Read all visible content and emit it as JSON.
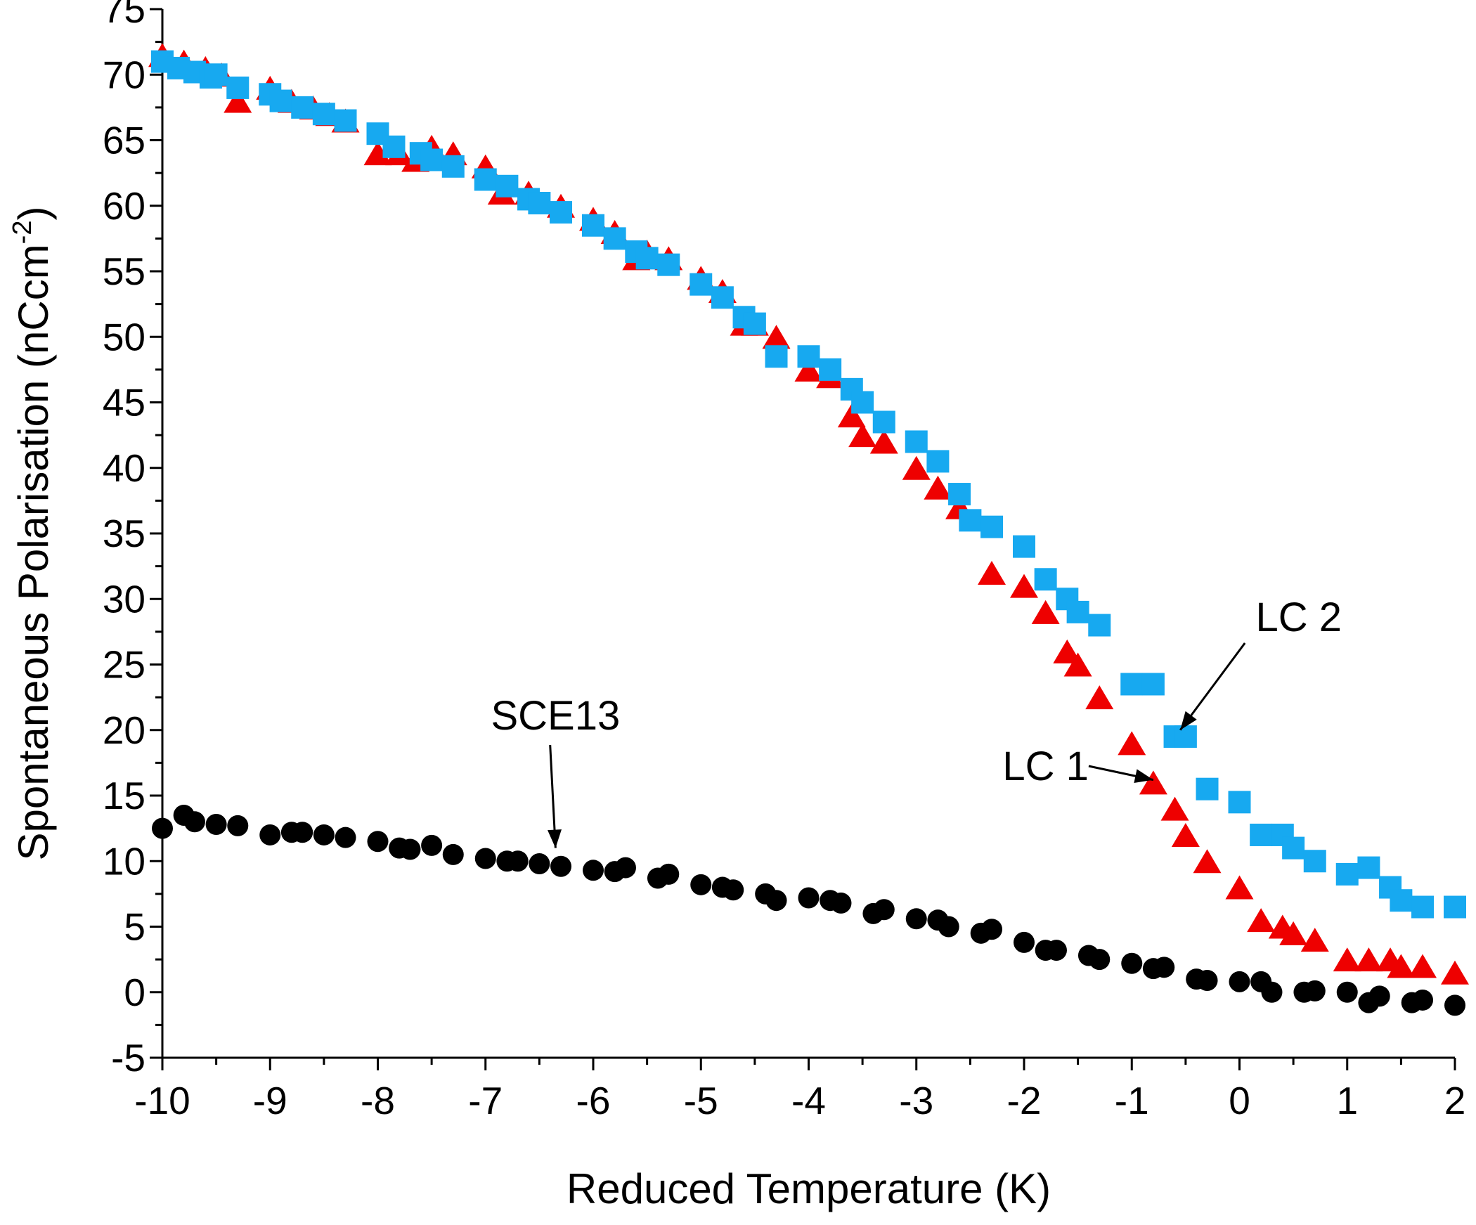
{
  "chart_data": {
    "type": "scatter",
    "title": "",
    "xlabel": "Reduced Temperature (K)",
    "ylabel_main": "Spontaneous Polarisation (nCcm",
    "ylabel_sup": "-2",
    "ylabel_end": ")",
    "xlim": [
      -10,
      2
    ],
    "ylim": [
      -5,
      75
    ],
    "xticks": [
      -10,
      -9,
      -8,
      -7,
      -6,
      -5,
      -4,
      -3,
      -2,
      -1,
      0,
      1,
      2
    ],
    "yticks": [
      -5,
      0,
      5,
      10,
      15,
      20,
      25,
      30,
      35,
      40,
      45,
      50,
      55,
      60,
      65,
      70,
      75
    ],
    "grid": false,
    "series": [
      {
        "name": "LC 1",
        "marker": "triangle",
        "color": "#ee0000",
        "points": [
          [
            -10.0,
            71.5
          ],
          [
            -9.8,
            71.0
          ],
          [
            -9.6,
            70.5
          ],
          [
            -9.45,
            70.0
          ],
          [
            -9.3,
            68.0
          ],
          [
            -9.0,
            69.0
          ],
          [
            -8.8,
            68.0
          ],
          [
            -8.6,
            67.5
          ],
          [
            -8.45,
            67.0
          ],
          [
            -8.3,
            66.5
          ],
          [
            -8.0,
            64.0
          ],
          [
            -7.8,
            64.0
          ],
          [
            -7.65,
            63.5
          ],
          [
            -7.5,
            64.5
          ],
          [
            -7.3,
            64.0
          ],
          [
            -7.0,
            63.0
          ],
          [
            -6.85,
            61.0
          ],
          [
            -6.6,
            61.0
          ],
          [
            -6.3,
            60.0
          ],
          [
            -6.0,
            59.0
          ],
          [
            -5.8,
            58.0
          ],
          [
            -5.6,
            56.0
          ],
          [
            -5.5,
            56.5
          ],
          [
            -5.3,
            56.0
          ],
          [
            -5.0,
            54.5
          ],
          [
            -4.8,
            53.5
          ],
          [
            -4.6,
            51.0
          ],
          [
            -4.5,
            51.0
          ],
          [
            -4.3,
            50.0
          ],
          [
            -4.0,
            47.5
          ],
          [
            -3.8,
            47.0
          ],
          [
            -3.6,
            44.0
          ],
          [
            -3.5,
            42.5
          ],
          [
            -3.3,
            42.0
          ],
          [
            -3.0,
            40.0
          ],
          [
            -2.8,
            38.5
          ],
          [
            -2.6,
            37.0
          ],
          [
            -2.3,
            32.0
          ],
          [
            -2.0,
            31.0
          ],
          [
            -1.8,
            29.0
          ],
          [
            -1.6,
            26.0
          ],
          [
            -1.5,
            25.0
          ],
          [
            -1.3,
            22.5
          ],
          [
            -1.0,
            19.0
          ],
          [
            -0.8,
            16.0
          ],
          [
            -0.6,
            14.0
          ],
          [
            -0.5,
            12.0
          ],
          [
            -0.3,
            10.0
          ],
          [
            0.0,
            8.0
          ],
          [
            0.2,
            5.5
          ],
          [
            0.4,
            5.0
          ],
          [
            0.5,
            4.5
          ],
          [
            0.7,
            4.0
          ],
          [
            1.0,
            2.5
          ],
          [
            1.2,
            2.5
          ],
          [
            1.4,
            2.5
          ],
          [
            1.5,
            2.0
          ],
          [
            1.7,
            2.0
          ],
          [
            2.0,
            1.5
          ]
        ]
      },
      {
        "name": "LC 2",
        "marker": "square",
        "color": "#17a9f0",
        "points": [
          [
            -10.0,
            71.0
          ],
          [
            -9.85,
            70.5
          ],
          [
            -9.7,
            70.2
          ],
          [
            -9.55,
            69.8
          ],
          [
            -9.5,
            70.0
          ],
          [
            -9.3,
            69.0
          ],
          [
            -9.0,
            68.5
          ],
          [
            -8.9,
            68.0
          ],
          [
            -8.7,
            67.5
          ],
          [
            -8.5,
            67.0
          ],
          [
            -8.3,
            66.5
          ],
          [
            -8.0,
            65.5
          ],
          [
            -7.85,
            64.5
          ],
          [
            -7.6,
            64.0
          ],
          [
            -7.5,
            63.5
          ],
          [
            -7.3,
            63.0
          ],
          [
            -7.0,
            62.0
          ],
          [
            -6.8,
            61.5
          ],
          [
            -6.6,
            60.5
          ],
          [
            -6.5,
            60.2
          ],
          [
            -6.3,
            59.5
          ],
          [
            -6.0,
            58.5
          ],
          [
            -5.8,
            57.5
          ],
          [
            -5.6,
            56.5
          ],
          [
            -5.5,
            56.0
          ],
          [
            -5.3,
            55.5
          ],
          [
            -5.0,
            54.0
          ],
          [
            -4.8,
            53.0
          ],
          [
            -4.6,
            51.5
          ],
          [
            -4.5,
            51.0
          ],
          [
            -4.3,
            48.5
          ],
          [
            -4.0,
            48.5
          ],
          [
            -3.8,
            47.5
          ],
          [
            -3.6,
            46.0
          ],
          [
            -3.5,
            45.0
          ],
          [
            -3.3,
            43.5
          ],
          [
            -3.0,
            42.0
          ],
          [
            -2.8,
            40.5
          ],
          [
            -2.6,
            38.0
          ],
          [
            -2.5,
            36.0
          ],
          [
            -2.3,
            35.5
          ],
          [
            -2.0,
            34.0
          ],
          [
            -1.8,
            31.5
          ],
          [
            -1.6,
            30.0
          ],
          [
            -1.5,
            29.0
          ],
          [
            -1.3,
            28.0
          ],
          [
            -1.0,
            23.5
          ],
          [
            -0.8,
            23.5
          ],
          [
            -0.6,
            19.5
          ],
          [
            -0.5,
            19.5
          ],
          [
            -0.3,
            15.5
          ],
          [
            0.0,
            14.5
          ],
          [
            0.2,
            12.0
          ],
          [
            0.4,
            12.0
          ],
          [
            0.5,
            11.0
          ],
          [
            0.7,
            10.0
          ],
          [
            1.0,
            9.0
          ],
          [
            1.2,
            9.5
          ],
          [
            1.4,
            8.0
          ],
          [
            1.5,
            7.0
          ],
          [
            1.7,
            6.5
          ],
          [
            2.0,
            6.5
          ]
        ]
      },
      {
        "name": "SCE13",
        "marker": "circle",
        "color": "#000000",
        "points": [
          [
            -10.0,
            12.5
          ],
          [
            -9.8,
            13.5
          ],
          [
            -9.7,
            13.0
          ],
          [
            -9.5,
            12.8
          ],
          [
            -9.3,
            12.7
          ],
          [
            -9.0,
            12.0
          ],
          [
            -8.8,
            12.2
          ],
          [
            -8.7,
            12.2
          ],
          [
            -8.5,
            12.0
          ],
          [
            -8.3,
            11.8
          ],
          [
            -8.0,
            11.5
          ],
          [
            -7.8,
            11.0
          ],
          [
            -7.7,
            10.9
          ],
          [
            -7.5,
            11.2
          ],
          [
            -7.3,
            10.5
          ],
          [
            -7.0,
            10.2
          ],
          [
            -6.8,
            10.0
          ],
          [
            -6.7,
            10.0
          ],
          [
            -6.5,
            9.8
          ],
          [
            -6.3,
            9.6
          ],
          [
            -6.0,
            9.3
          ],
          [
            -5.8,
            9.2
          ],
          [
            -5.7,
            9.5
          ],
          [
            -5.4,
            8.7
          ],
          [
            -5.3,
            9.0
          ],
          [
            -5.0,
            8.2
          ],
          [
            -4.8,
            8.0
          ],
          [
            -4.7,
            7.8
          ],
          [
            -4.4,
            7.5
          ],
          [
            -4.3,
            7.0
          ],
          [
            -4.0,
            7.2
          ],
          [
            -3.8,
            7.0
          ],
          [
            -3.7,
            6.8
          ],
          [
            -3.4,
            6.0
          ],
          [
            -3.3,
            6.3
          ],
          [
            -3.0,
            5.6
          ],
          [
            -2.8,
            5.5
          ],
          [
            -2.7,
            5.0
          ],
          [
            -2.4,
            4.5
          ],
          [
            -2.3,
            4.8
          ],
          [
            -2.0,
            3.8
          ],
          [
            -1.8,
            3.2
          ],
          [
            -1.7,
            3.2
          ],
          [
            -1.4,
            2.8
          ],
          [
            -1.3,
            2.5
          ],
          [
            -1.0,
            2.2
          ],
          [
            -0.8,
            1.8
          ],
          [
            -0.7,
            1.9
          ],
          [
            -0.4,
            1.0
          ],
          [
            -0.3,
            0.9
          ],
          [
            0.0,
            0.8
          ],
          [
            0.2,
            0.8
          ],
          [
            0.3,
            0.0
          ],
          [
            0.6,
            0.0
          ],
          [
            0.7,
            0.1
          ],
          [
            1.0,
            0.0
          ],
          [
            1.2,
            -0.8
          ],
          [
            1.3,
            -0.3
          ],
          [
            1.6,
            -0.8
          ],
          [
            1.7,
            -0.6
          ],
          [
            2.0,
            -1.0
          ]
        ]
      }
    ],
    "annotations": [
      {
        "text": "SCE13",
        "points_to": [
          -6.35,
          11.0
        ]
      },
      {
        "text": "LC 1",
        "points_to": [
          -0.8,
          16.2
        ]
      },
      {
        "text": "LC 2",
        "points_to": [
          -0.55,
          20.0
        ]
      }
    ]
  }
}
